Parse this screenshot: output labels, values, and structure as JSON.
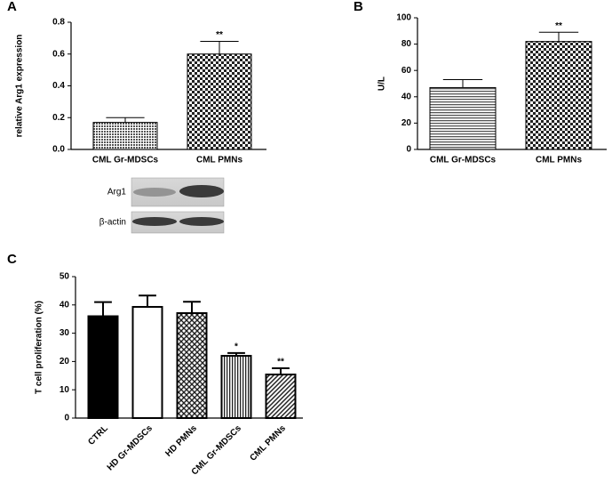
{
  "chart_data": [
    {
      "type": "bar",
      "panel": "A",
      "ylabel": "relative Arg1 expression",
      "categories": [
        "CML Gr-MDSCs",
        "CML PMNs"
      ],
      "values": [
        0.17,
        0.6
      ],
      "errors": [
        0.03,
        0.08
      ],
      "ylim": [
        0,
        0.8
      ],
      "yticks": [
        {
          "value": 0,
          "label": "0.0"
        },
        0.2,
        0.4,
        0.6,
        0.8
      ],
      "annotations": [
        {
          "category": "CML PMNs",
          "text": "**"
        }
      ]
    },
    {
      "type": "bar",
      "panel": "B",
      "ylabel": "U/L",
      "categories": [
        "CML Gr-MDSCs",
        "CML PMNs"
      ],
      "values": [
        47,
        82
      ],
      "errors": [
        6,
        7
      ],
      "ylim": [
        0,
        100
      ],
      "yticks": [
        0,
        20,
        40,
        60,
        80,
        100
      ],
      "annotations": [
        {
          "category": "CML PMNs",
          "text": "**"
        }
      ]
    },
    {
      "type": "bar",
      "panel": "C",
      "ylabel": "T cell proliferation (%)",
      "categories": [
        "CTRL",
        "HD Gr-MDSCs",
        "HD PMNs",
        "CML Gr-MDSCs",
        "CML PMNs"
      ],
      "values": [
        36,
        39.3,
        37.1,
        22,
        15.4
      ],
      "errors": [
        5,
        4,
        4,
        1,
        2.2
      ],
      "ylim": [
        0,
        50
      ],
      "yticks": [
        0,
        10,
        20,
        30,
        40,
        50
      ],
      "annotations": [
        {
          "category": "CML Gr-MDSCs",
          "text": "*"
        },
        {
          "category": "CML PMNs",
          "text": "**"
        }
      ]
    }
  ],
  "blot": {
    "labels": [
      "Arg1",
      "β-actin"
    ]
  }
}
